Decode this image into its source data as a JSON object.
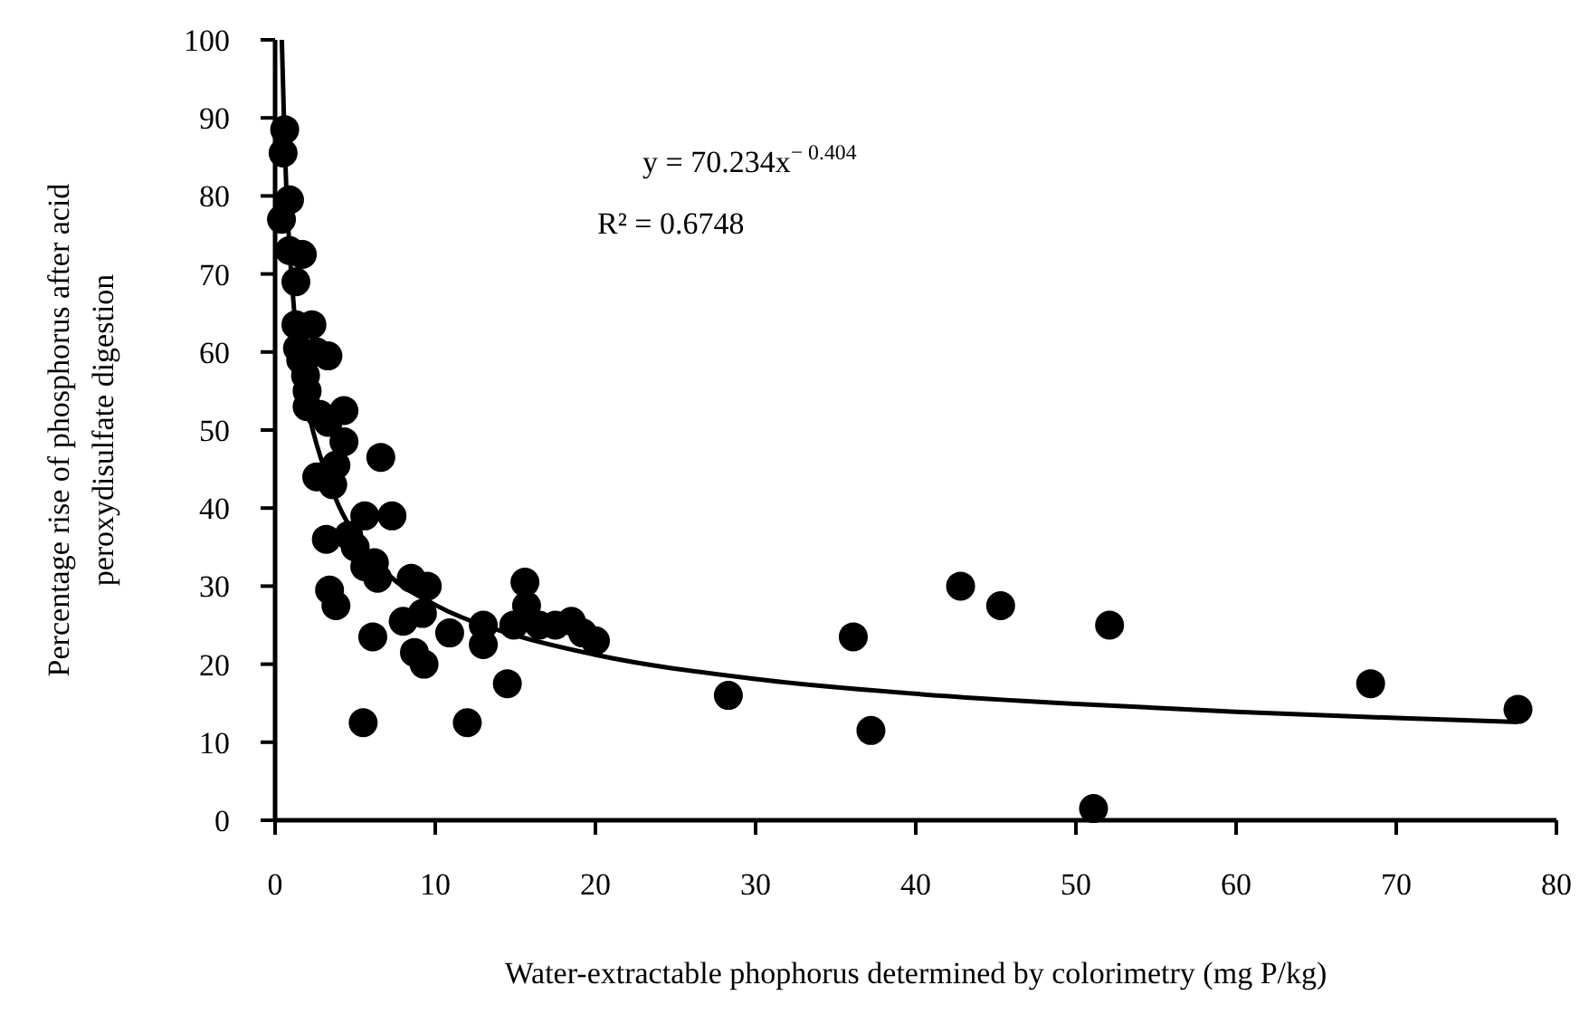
{
  "chart_data": {
    "type": "scatter",
    "xlabel": "Water-extractable phophorus determined by colorimetry (mg P/kg)",
    "ylabel": "Percentage rise of phosphorus after acid peroxydisulfate digestion",
    "xlim": [
      0,
      80
    ],
    "ylim": [
      0,
      100
    ],
    "xticks": [
      0,
      10,
      20,
      30,
      40,
      50,
      60,
      70,
      80
    ],
    "yticks": [
      0,
      10,
      20,
      30,
      40,
      50,
      60,
      70,
      80,
      90,
      100
    ],
    "grid": false,
    "marker": "circle",
    "annotations": [
      "y = 70.234x$^{− 0.404}$",
      "R² = 0.6748"
    ],
    "series": [
      {
        "color": "#000000",
        "x": [
          0.4,
          0.6,
          0.5,
          0.9,
          0.9,
          1.3,
          1.3,
          1.7,
          1.4,
          1.6,
          2.3,
          1.9,
          2.0,
          2.0,
          2.6,
          3.3,
          2.8,
          3.3,
          4.3,
          4.3,
          2.6,
          3.8,
          3.6,
          3.2,
          3.4,
          3.8,
          4.6,
          5.0,
          5.6,
          5.6,
          6.2,
          6.4,
          6.6,
          7.3,
          6.1,
          5.5,
          8.0,
          8.5,
          8.7,
          9.3,
          9.2,
          9.5,
          10.9,
          12.0,
          13.0,
          13.0,
          14.5,
          14.9,
          15.6,
          15.7,
          16.5,
          17.5,
          18.5,
          19.2,
          20.0,
          28.3,
          36.1,
          37.2,
          42.8,
          45.3,
          52.1,
          51.1,
          68.4,
          77.6
        ],
        "values": [
          77,
          88.5,
          85.5,
          79.5,
          73,
          69,
          63.5,
          72.5,
          60.5,
          59,
          63.5,
          57,
          55,
          53,
          60,
          59.5,
          52,
          51,
          52.5,
          48.5,
          44,
          45.5,
          43,
          36,
          29.5,
          27.5,
          36.5,
          35,
          32.5,
          39,
          33,
          31,
          46.5,
          39,
          23.5,
          12.5,
          25.5,
          31,
          21.5,
          20,
          26.5,
          30,
          24,
          12.5,
          25,
          22.5,
          17.5,
          25,
          30.5,
          27.5,
          25,
          25,
          25.5,
          24,
          23,
          16,
          23.5,
          11.5,
          30,
          27.5,
          25,
          1.5,
          17.5,
          14.2
        ]
      },
      {
        "type": "line",
        "color": "#000000",
        "marker": "none",
        "line_style": "solid",
        "x": [
          0.42,
          0.6,
          1,
          1.5,
          2,
          3,
          4,
          5,
          7,
          10,
          15,
          20,
          30,
          40,
          50,
          60,
          70,
          77.6
        ],
        "values": [
          100,
          86.5,
          70.2,
          59.6,
          53.2,
          45.5,
          40.2,
          36.5,
          31.6,
          27.6,
          23.7,
          21.2,
          18.1,
          16.2,
          14.9,
          13.9,
          13.1,
          12.6
        ]
      }
    ]
  }
}
